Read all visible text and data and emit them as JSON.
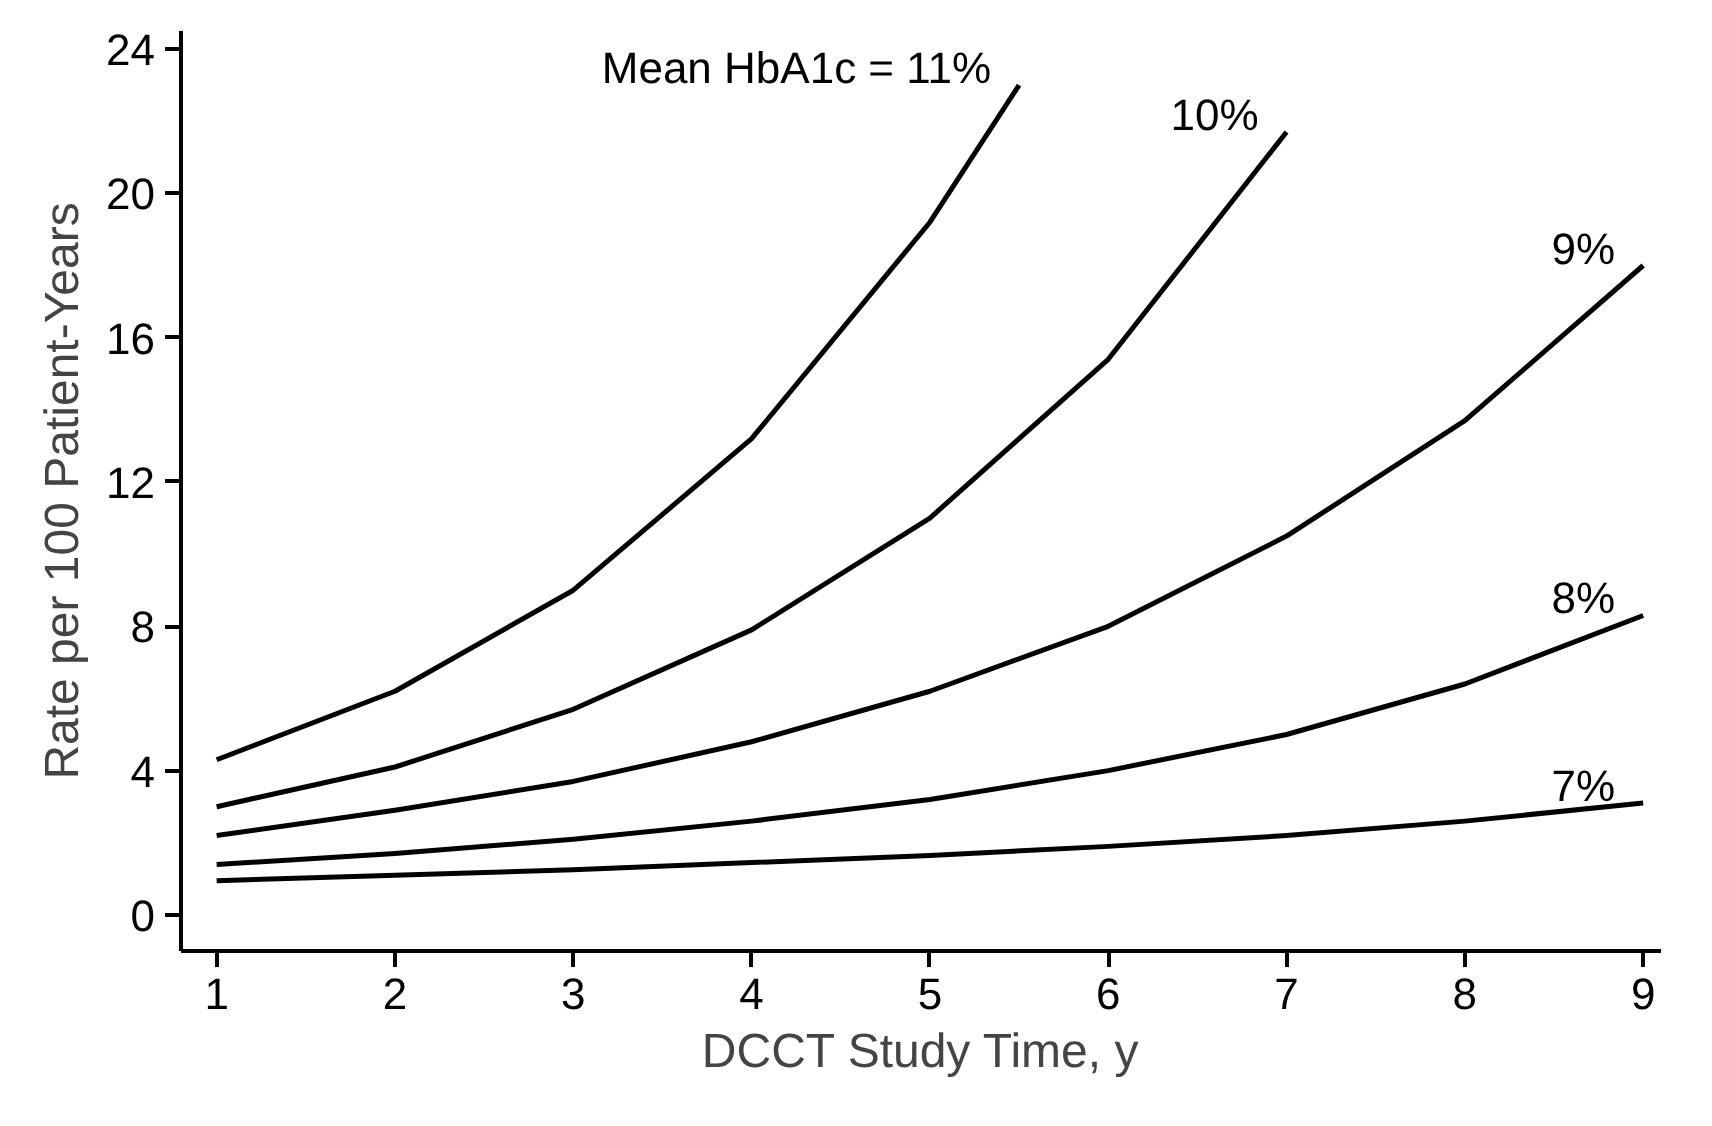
{
  "chart_data": {
    "type": "line",
    "xlabel": "DCCT Study Time, y",
    "ylabel": "Rate per 100 Patient-Years",
    "xlim": [
      0.8,
      9.1
    ],
    "ylim": [
      -1,
      24.5
    ],
    "xticks": [
      1,
      2,
      3,
      4,
      5,
      6,
      7,
      8,
      9
    ],
    "yticks": [
      0,
      4,
      8,
      12,
      16,
      20,
      24
    ],
    "grid": false,
    "marker": "none",
    "line_style": "solid",
    "series": [
      {
        "name": "Mean HbA1c = 11%",
        "color": "#000000",
        "x": [
          1,
          2,
          3,
          4,
          5,
          5.5
        ],
        "values": [
          4.3,
          6.2,
          9.0,
          13.2,
          19.2,
          23
        ]
      },
      {
        "name": "10%",
        "color": "#000000",
        "x": [
          1,
          2,
          3,
          4,
          5,
          6,
          7
        ],
        "values": [
          3.0,
          4.1,
          5.7,
          7.9,
          11.0,
          15.4,
          21.7
        ]
      },
      {
        "name": "9%",
        "color": "#000000",
        "x": [
          1,
          2,
          3,
          4,
          5,
          6,
          7,
          8,
          9
        ],
        "values": [
          2.2,
          2.9,
          3.7,
          4.8,
          6.2,
          8.0,
          10.5,
          13.7,
          18
        ]
      },
      {
        "name": "8%",
        "color": "#000000",
        "x": [
          1,
          2,
          3,
          4,
          5,
          6,
          7,
          8,
          9
        ],
        "values": [
          1.4,
          1.7,
          2.1,
          2.6,
          3.2,
          4.0,
          5.0,
          6.4,
          8.3
        ]
      },
      {
        "name": "7%",
        "color": "#000000",
        "x": [
          1,
          2,
          3,
          4,
          5,
          6,
          7,
          8,
          9
        ],
        "values": [
          0.95,
          1.1,
          1.25,
          1.45,
          1.65,
          1.9,
          2.2,
          2.6,
          3.1
        ]
      }
    ]
  }
}
